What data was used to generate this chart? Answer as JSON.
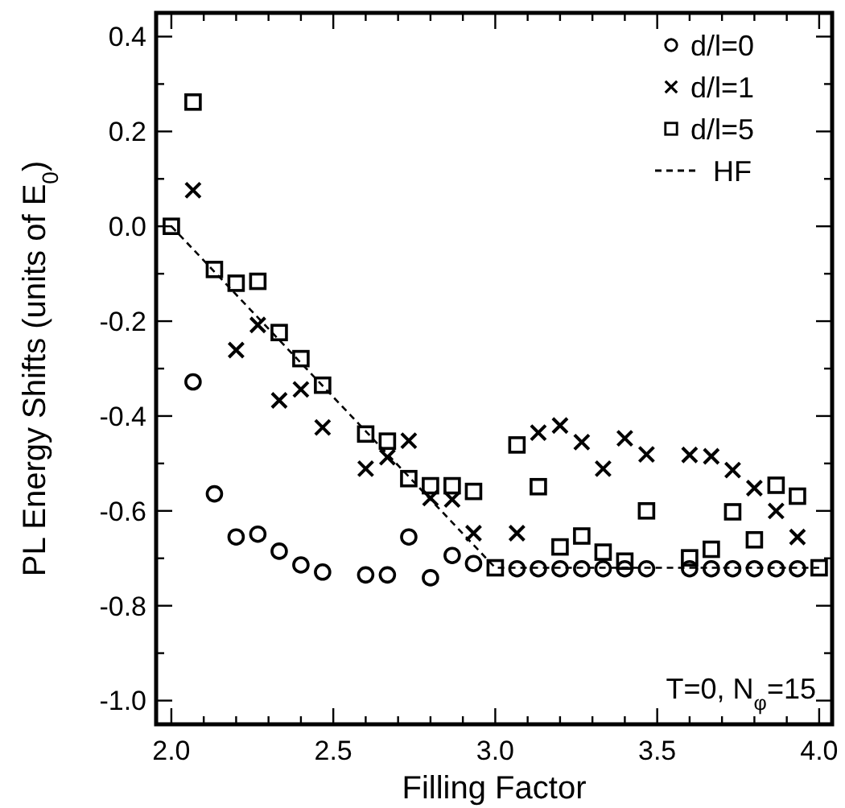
{
  "chart_data": {
    "type": "scatter",
    "xlabel": "Filling Factor",
    "ylabel": "PL Energy Shifts (units of E$_{0}$)",
    "x": [
      2,
      2.067,
      2.133,
      2.2,
      2.267,
      2.333,
      2.4,
      2.467,
      2.533,
      2.6,
      2.667,
      2.733,
      2.8,
      2.867,
      2.933,
      3,
      3.067,
      3.133,
      3.2,
      3.267,
      3.333,
      3.4,
      3.467,
      3.533,
      3.6,
      3.667,
      3.733,
      3.8,
      3.867,
      3.933,
      4
    ],
    "series": [
      {
        "name": "d/l=0",
        "color": "#000000",
        "marker": "circle",
        "values": [
          null,
          -0.328,
          -0.564,
          -0.655,
          -0.649,
          -0.685,
          -0.714,
          -0.729,
          null,
          -0.735,
          -0.735,
          -0.655,
          -0.741,
          -0.694,
          -0.711,
          null,
          -0.722,
          -0.722,
          -0.722,
          -0.722,
          -0.722,
          -0.722,
          -0.722,
          null,
          -0.722,
          -0.722,
          -0.722,
          -0.722,
          -0.722,
          -0.722,
          null
        ]
      },
      {
        "name": "d/l=1",
        "color": "#000000",
        "marker": "cross",
        "values": [
          null,
          0.076,
          null,
          -0.261,
          -0.208,
          -0.367,
          -0.344,
          -0.424,
          null,
          -0.511,
          -0.487,
          -0.452,
          -0.573,
          -0.576,
          -0.647,
          null,
          -0.647,
          -0.435,
          -0.42,
          -0.455,
          -0.511,
          -0.447,
          -0.481,
          null,
          -0.482,
          -0.485,
          -0.514,
          -0.552,
          -0.6,
          -0.655,
          null
        ]
      },
      {
        "name": "d/l=5",
        "color": "#000000",
        "marker": "square",
        "values": [
          0,
          0.262,
          -0.091,
          -0.12,
          -0.116,
          -0.224,
          -0.279,
          -0.335,
          null,
          -0.438,
          -0.453,
          -0.532,
          -0.547,
          -0.547,
          -0.559,
          -0.72,
          -0.461,
          -0.549,
          -0.676,
          -0.653,
          -0.687,
          -0.706,
          -0.6,
          null,
          -0.699,
          -0.681,
          -0.602,
          -0.661,
          -0.546,
          -0.569,
          -0.72
        ]
      },
      {
        "name": "HF",
        "type": "line",
        "color": "#000000",
        "marker": "none",
        "line_style": "dashed",
        "x": [
          2,
          3,
          4
        ],
        "values": [
          0,
          -0.72,
          -0.72
        ]
      }
    ],
    "xlim": [
      1.953,
      4.04
    ],
    "ylim": [
      -1.05,
      0.45
    ],
    "xticks": [
      {
        "value": 2,
        "label": "2.0"
      },
      {
        "value": 2.1,
        "label": null
      },
      {
        "value": 2.2,
        "label": null
      },
      {
        "value": 2.3,
        "label": null
      },
      {
        "value": 2.4,
        "label": null
      },
      {
        "value": 2.5,
        "label": "2.5"
      },
      {
        "value": 2.6,
        "label": null
      },
      {
        "value": 2.7,
        "label": null
      },
      {
        "value": 2.8,
        "label": null
      },
      {
        "value": 2.9,
        "label": null
      },
      {
        "value": 3,
        "label": "3.0"
      },
      {
        "value": 3.1,
        "label": null
      },
      {
        "value": 3.2,
        "label": null
      },
      {
        "value": 3.3,
        "label": null
      },
      {
        "value": 3.4,
        "label": null
      },
      {
        "value": 3.5,
        "label": "3.5"
      },
      {
        "value": 3.6,
        "label": null
      },
      {
        "value": 3.7,
        "label": null
      },
      {
        "value": 3.8,
        "label": null
      },
      {
        "value": 3.9,
        "label": null
      },
      {
        "value": 4,
        "label": "4.0"
      }
    ],
    "yticks": [
      {
        "value": 0.4,
        "label": "0.4"
      },
      {
        "value": 0.3,
        "label": null
      },
      {
        "value": 0.2,
        "label": "0.2"
      },
      {
        "value": 0.1,
        "label": null
      },
      {
        "value": 0,
        "label": "0.0"
      },
      {
        "value": -0.1,
        "label": null
      },
      {
        "value": -0.2,
        "label": "-0.2"
      },
      {
        "value": -0.3,
        "label": null
      },
      {
        "value": -0.4,
        "label": "-0.4"
      },
      {
        "value": -0.5,
        "label": null
      },
      {
        "value": -0.6,
        "label": "-0.6"
      },
      {
        "value": -0.7,
        "label": null
      },
      {
        "value": -0.8,
        "label": "-0.8"
      },
      {
        "value": -0.9,
        "label": null
      },
      {
        "value": -1,
        "label": "-1.0"
      }
    ],
    "legend": "top right",
    "grid": false,
    "annotations": [
      "T=0, N$_{φ}$=15"
    ]
  }
}
